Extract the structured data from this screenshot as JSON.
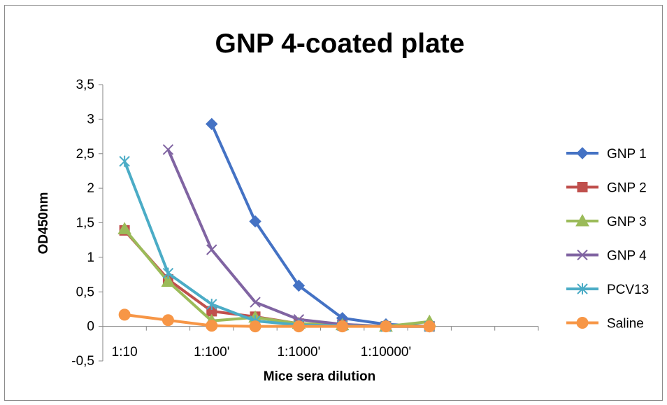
{
  "chart_data": {
    "type": "line",
    "title": "GNP 4-coated plate",
    "xlabel": "Mice sera dilution",
    "ylabel": "OD450nm",
    "ylim": [
      -0.5,
      3.5
    ],
    "y_ticks": [
      "-0,5",
      "0",
      "0,5",
      "1",
      "1,5",
      "2",
      "2,5",
      "3",
      "3,5"
    ],
    "x_tick_labels": [
      "1:10",
      "1:100'",
      "1:1000'",
      "1:10000'"
    ],
    "x_tick_label_categories": [
      1,
      3,
      5,
      7
    ],
    "categories": [
      1,
      2,
      3,
      4,
      5,
      6,
      7,
      8,
      9,
      10
    ],
    "grid": false,
    "legend_position": "right",
    "series": [
      {
        "name": "GNP 1",
        "color": "#4472C4",
        "marker": "diamond",
        "x": [
          3,
          4,
          5,
          6,
          7,
          8
        ],
        "values": [
          2.93,
          1.52,
          0.59,
          0.12,
          0.03,
          0.0
        ]
      },
      {
        "name": "GNP 2",
        "color": "#C0504D",
        "marker": "square",
        "x": [
          1,
          2,
          3,
          4,
          5,
          6,
          7,
          8
        ],
        "values": [
          1.39,
          0.68,
          0.22,
          0.14,
          0.04,
          0.02,
          0.0,
          0.0
        ]
      },
      {
        "name": "GNP 3",
        "color": "#9BBB59",
        "marker": "triangle",
        "x": [
          1,
          2,
          3,
          4,
          5,
          6,
          7,
          8
        ],
        "values": [
          1.41,
          0.65,
          0.08,
          0.13,
          0.04,
          0.02,
          0.0,
          0.07
        ]
      },
      {
        "name": "GNP 4",
        "color": "#8064A2",
        "marker": "x",
        "x": [
          2,
          3,
          4,
          5,
          6,
          7,
          8
        ],
        "values": [
          2.56,
          1.11,
          0.35,
          0.1,
          0.03,
          0.0,
          0.0
        ]
      },
      {
        "name": "PCV13",
        "color": "#4BACC6",
        "marker": "star",
        "x": [
          1,
          2,
          3,
          4,
          5,
          6,
          7,
          8
        ],
        "values": [
          2.39,
          0.77,
          0.32,
          0.08,
          0.02,
          0.01,
          0.0,
          0.0
        ]
      },
      {
        "name": "Saline",
        "color": "#F79646",
        "marker": "circle",
        "x": [
          1,
          2,
          3,
          4,
          5,
          6,
          7,
          8
        ],
        "values": [
          0.17,
          0.09,
          0.01,
          0.0,
          0.0,
          0.0,
          0.0,
          0.0
        ]
      }
    ]
  }
}
